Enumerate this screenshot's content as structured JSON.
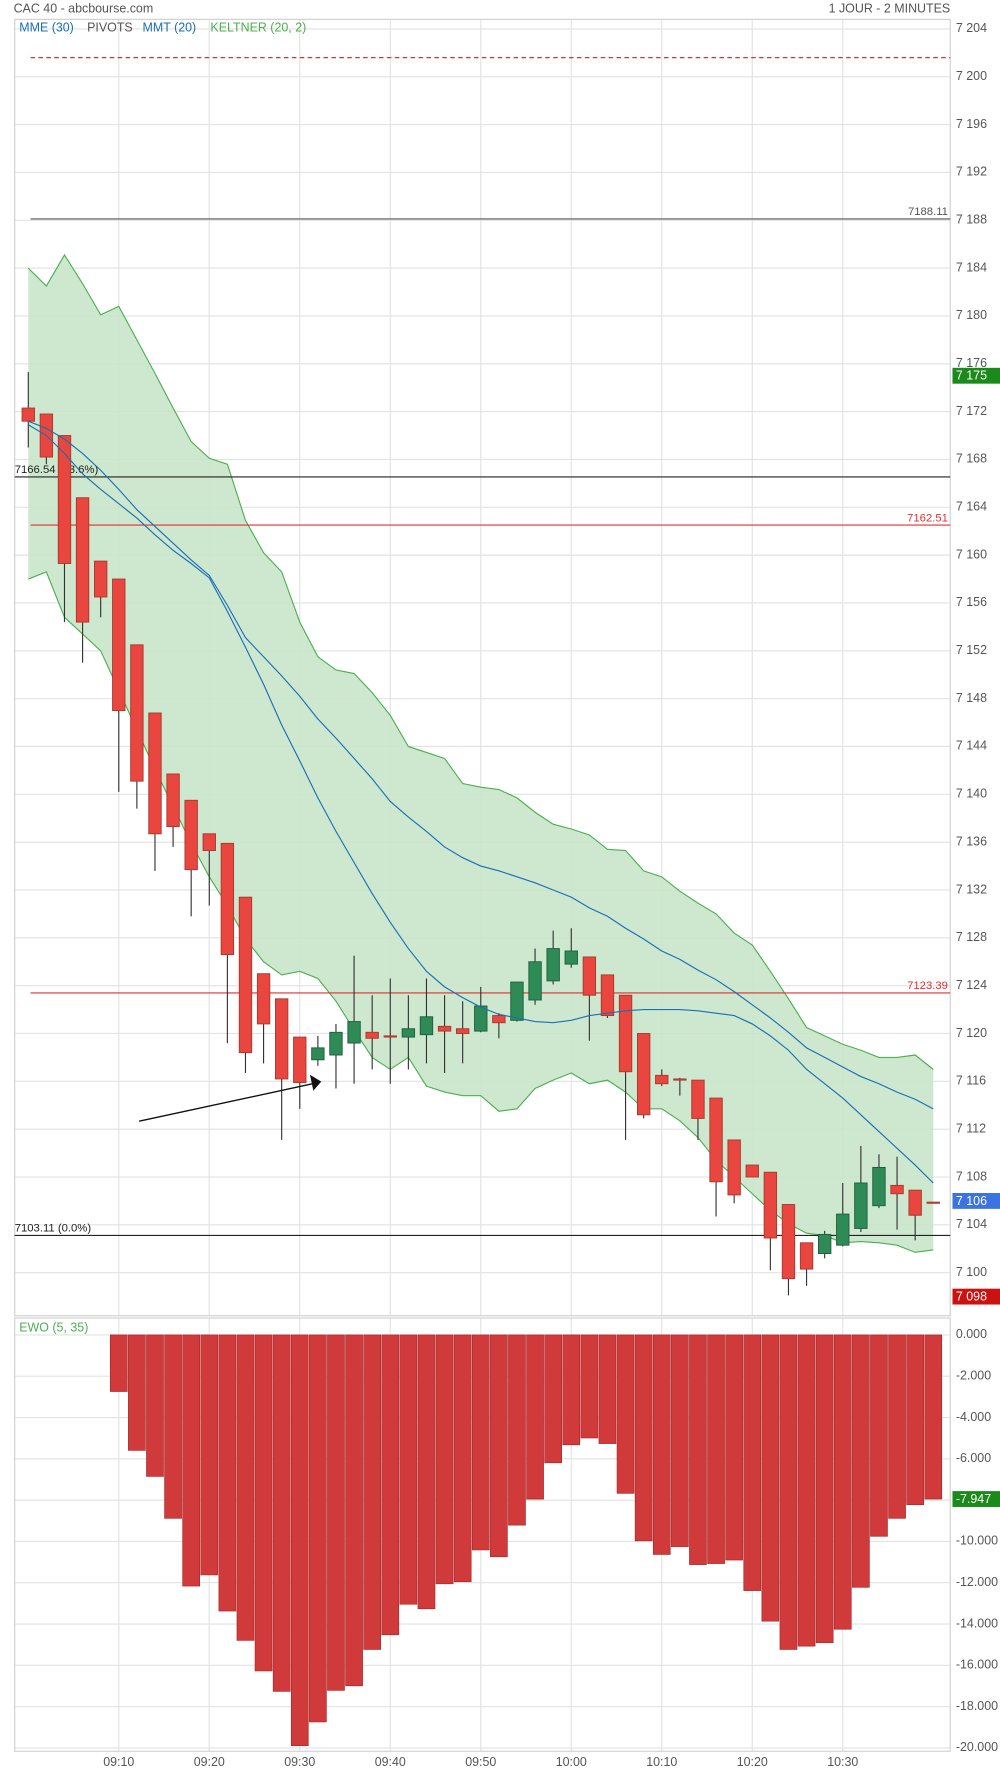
{
  "chart_data": [
    {
      "type": "candlestick",
      "title": "CAC 40 - abcbourse.com",
      "subtitle": "1 JOUR - 2 MINUTES",
      "categories": [
        null,
        null,
        null,
        null,
        null,
        "09:10",
        null,
        null,
        null,
        null,
        "09:20",
        null,
        null,
        null,
        null,
        "09:30",
        null,
        null,
        null,
        null,
        "09:40",
        null,
        null,
        null,
        null,
        "09:50",
        null,
        null,
        null,
        null,
        "10:00",
        null,
        null,
        null,
        null,
        "10:10",
        null,
        null,
        null,
        null,
        "10:20",
        null,
        null,
        null,
        null,
        "10:30",
        null,
        null,
        null,
        null,
        null
      ],
      "open": [
        7172.3,
        7171.8,
        7170.0,
        7164.8,
        7159.5,
        7158.0,
        7152.5,
        7146.8,
        7141.7,
        7139.5,
        7136.7,
        7135.9,
        7131.4,
        7125.0,
        7122.9,
        7119.7,
        7117.8,
        7118.2,
        7119.2,
        7120.1,
        7119.8,
        7119.7,
        7119.9,
        7120.6,
        7120.4,
        7120.2,
        7121.5,
        7121.1,
        7122.8,
        7124.4,
        7125.8,
        7126.4,
        7124.9,
        7123.2,
        7120.0,
        7116.5,
        7116.2,
        7116.1,
        7114.6,
        7111.1,
        7109.0,
        7108.4,
        7105.7,
        7102.5,
        7101.6,
        7102.3,
        7103.7,
        7105.6,
        7107.3,
        7106.9,
        7105.9
      ],
      "high": [
        7175.3,
        7171.8,
        7170.0,
        7164.8,
        7159.5,
        7158.0,
        7152.5,
        7146.8,
        7141.7,
        7139.5,
        7136.7,
        7135.9,
        7131.4,
        7125.0,
        7122.9,
        7119.7,
        7119.8,
        7120.8,
        7126.5,
        7123.2,
        7124.6,
        7123.2,
        7124.6,
        7123.2,
        7122.7,
        7123.9,
        7121.7,
        7124.3,
        7127.1,
        7128.6,
        7128.8,
        7126.4,
        7124.9,
        7123.2,
        7120.0,
        7117.0,
        7116.3,
        7116.1,
        7114.6,
        7111.1,
        7109.0,
        7108.4,
        7105.7,
        7102.5,
        7103.5,
        7107.5,
        7110.6,
        7109.9,
        7109.7,
        7106.9,
        7105.9
      ],
      "low": [
        7169.0,
        7167.6,
        7154.4,
        7151.0,
        7154.8,
        7140.2,
        7138.8,
        7133.6,
        7135.6,
        7129.8,
        7130.7,
        7119.2,
        7116.7,
        7117.5,
        7111.1,
        7113.7,
        7117.3,
        7115.4,
        7115.8,
        7117.0,
        7115.8,
        7117.0,
        7117.5,
        7116.7,
        7117.5,
        7120.1,
        7119.6,
        7121.0,
        7122.4,
        7124.1,
        7125.5,
        7119.4,
        7121.3,
        7111.1,
        7112.9,
        7115.6,
        7114.8,
        7111.1,
        7104.7,
        7105.8,
        7108.0,
        7100.2,
        7098.1,
        7098.9,
        7101.2,
        7102.2,
        7103.4,
        7105.4,
        7103.6,
        7102.7,
        7105.8
      ],
      "close": [
        7171.2,
        7168.2,
        7159.3,
        7154.4,
        7156.5,
        7147.0,
        7141.1,
        7136.7,
        7137.3,
        7133.7,
        7135.3,
        7126.6,
        7118.4,
        7120.8,
        7116.2,
        7115.9,
        7118.8,
        7120.1,
        7121.0,
        7119.6,
        7119.7,
        7120.4,
        7121.4,
        7120.2,
        7120.0,
        7122.3,
        7120.9,
        7124.3,
        7126.0,
        7127.1,
        7126.9,
        7123.2,
        7121.5,
        7116.8,
        7113.2,
        7115.8,
        7116.1,
        7112.9,
        7107.6,
        7106.5,
        7108.0,
        7102.9,
        7099.5,
        7100.3,
        7103.2,
        7104.9,
        7107.5,
        7108.8,
        7106.6,
        7104.8,
        7105.8
      ],
      "up_color": "#2e8b57",
      "down_color": "#e8463f",
      "series": [
        {
          "name": "MME (30)",
          "color": "#1a6fb5",
          "values": [
            7171.2,
            7170.6,
            7169.7,
            7168.5,
            7167.1,
            7165.5,
            7163.8,
            7162.4,
            7161.0,
            7159.6,
            7158.3,
            7155.8,
            7153.1,
            7151.5,
            7149.9,
            7148.2,
            7146.3,
            7144.7,
            7143.0,
            7141.3,
            7139.4,
            7138.1,
            7136.9,
            7135.6,
            7134.7,
            7134.0,
            7133.6,
            7133.1,
            7132.6,
            7132.0,
            7131.4,
            7130.5,
            7129.8,
            7128.8,
            7127.9,
            7126.9,
            7126.2,
            7125.3,
            7124.5,
            7123.5,
            7122.4,
            7121.3,
            7120.1,
            7118.8,
            7118.0,
            7117.2,
            7116.4,
            7115.8,
            7115.1,
            7114.5,
            7113.7
          ]
        },
        {
          "name": "MMT (20)",
          "color": "#1a6fb5",
          "values": [
            7170.9,
            7170.0,
            7168.5,
            7166.8,
            7165.5,
            7164.3,
            7163.1,
            7161.7,
            7160.4,
            7159.3,
            7158.1,
            7155.3,
            7152.3,
            7149.2,
            7145.8,
            7142.8,
            7139.7,
            7136.9,
            7134.3,
            7131.7,
            7129.3,
            7127.1,
            7125.2,
            7123.9,
            7123.0,
            7122.2,
            7121.6,
            7121.3,
            7121.0,
            7120.9,
            7121.1,
            7121.5,
            7121.7,
            7121.9,
            7122.0,
            7122.0,
            7122.0,
            7121.9,
            7121.7,
            7121.5,
            7120.8,
            7119.8,
            7118.6,
            7117.0,
            7115.8,
            7114.6,
            7113.2,
            7111.8,
            7110.4,
            7109.0,
            7107.5
          ]
        },
        {
          "name": "KELTNER (20, 2)",
          "color": "#4caf50",
          "fill": "#c8e6c9",
          "upper": [
            7184.0,
            7182.5,
            7185.1,
            7182.7,
            7180.1,
            7180.8,
            7178.0,
            7175.2,
            7172.3,
            7169.5,
            7168.1,
            7167.6,
            7162.9,
            7160.2,
            7158.6,
            7154.4,
            7151.5,
            7150.4,
            7150.1,
            7148.5,
            7146.6,
            7144.0,
            7143.5,
            7143.0,
            7140.9,
            7140.6,
            7140.4,
            7139.7,
            7138.5,
            7137.5,
            7137.1,
            7136.6,
            7135.4,
            7135.3,
            7133.6,
            7133.1,
            7131.9,
            7130.9,
            7130.0,
            7128.4,
            7127.4,
            7125.2,
            7122.9,
            7120.5,
            7119.8,
            7119.1,
            7118.6,
            7118.0,
            7118.0,
            7118.2,
            7117.0
          ],
          "lower": [
            7158.0,
            7158.6,
            7154.8,
            7153.4,
            7152.0,
            7148.7,
            7145.4,
            7142.1,
            7139.0,
            7135.9,
            7133.1,
            7130.7,
            7127.9,
            7126.0,
            7124.9,
            7125.2,
            7124.6,
            7122.7,
            7120.3,
            7118.0,
            7117.0,
            7118.0,
            7115.6,
            7115.1,
            7114.8,
            7114.8,
            7113.5,
            7113.7,
            7115.4,
            7116.1,
            7116.7,
            7115.8,
            7116.1,
            7115.1,
            7113.7,
            7113.7,
            7112.7,
            7111.3,
            7109.4,
            7108.0,
            7106.6,
            7105.2,
            7104.1,
            7103.3,
            7103.1,
            7102.5,
            7102.6,
            7102.5,
            7102.3,
            7101.7,
            7101.9
          ]
        }
      ],
      "pivots": {
        "name": "PIVOTS",
        "color": "#555555",
        "levels": [
          {
            "value": 7201.6,
            "color": "#e03030",
            "dashed": true
          },
          {
            "value": 7188.11,
            "label": "7188.11",
            "color": "#555555",
            "label_side": "right"
          },
          {
            "value": 7166.54,
            "label": "7166.54  (23.6%)",
            "color": "#222222",
            "label_side": "left"
          },
          {
            "value": 7162.51,
            "label": "7162.51",
            "color": "#e03030",
            "label_side": "right"
          },
          {
            "value": 7123.39,
            "label": "7123.39",
            "color": "#e03030",
            "label_side": "right"
          },
          {
            "value": 7103.11,
            "label": "7103.11  (0.0%)",
            "color": "#222222",
            "label_side": "left"
          }
        ]
      },
      "markers": [
        {
          "value": 7175,
          "label": "7 175",
          "color": "#1a8a1a"
        },
        {
          "value": 7106,
          "label": "7 106",
          "color": "#3b73e0"
        },
        {
          "value": 7098,
          "label": "7 098",
          "color": "#cc1111"
        }
      ],
      "ylim": [
        7096.4,
        7204.8
      ],
      "yticks": [
        {
          "value": 7100,
          "label": "7 100"
        },
        {
          "value": 7104,
          "label": "7 104"
        },
        {
          "value": 7108,
          "label": "7 108"
        },
        {
          "value": 7112,
          "label": "7 112"
        },
        {
          "value": 7116,
          "label": "7 116"
        },
        {
          "value": 7120,
          "label": "7 120"
        },
        {
          "value": 7124,
          "label": "7 124"
        },
        {
          "value": 7128,
          "label": "7 128"
        },
        {
          "value": 7132,
          "label": "7 132"
        },
        {
          "value": 7136,
          "label": "7 136"
        },
        {
          "value": 7140,
          "label": "7 140"
        },
        {
          "value": 7144,
          "label": "7 144"
        },
        {
          "value": 7148,
          "label": "7 148"
        },
        {
          "value": 7152,
          "label": "7 152"
        },
        {
          "value": 7156,
          "label": "7 156"
        },
        {
          "value": 7160,
          "label": "7 160"
        },
        {
          "value": 7164,
          "label": "7 164"
        },
        {
          "value": 7168,
          "label": "7 168"
        },
        {
          "value": 7172,
          "label": "7 172"
        },
        {
          "value": 7176,
          "label": "7 176"
        },
        {
          "value": 7180,
          "label": "7 180"
        },
        {
          "value": 7184,
          "label": "7 184"
        },
        {
          "value": 7188,
          "label": "7 188"
        },
        {
          "value": 7192,
          "label": "7 192"
        },
        {
          "value": 7196,
          "label": "7 196"
        },
        {
          "value": 7200,
          "label": "7 200"
        },
        {
          "value": 7204,
          "label": "7 204"
        }
      ],
      "grid": true
    },
    {
      "type": "bar",
      "title": "EWO (5, 35)",
      "title_color": "#4caf50",
      "categories": [
        null,
        null,
        null,
        null,
        null,
        "09:10",
        null,
        null,
        null,
        null,
        "09:20",
        null,
        null,
        null,
        null,
        "09:30",
        null,
        null,
        null,
        null,
        "09:40",
        null,
        null,
        null,
        null,
        "09:50",
        null,
        null,
        null,
        null,
        "10:00",
        null,
        null,
        null,
        null,
        "10:10",
        null,
        null,
        null,
        null,
        "10:20",
        null,
        null,
        null,
        null,
        "10:30",
        null,
        null,
        null,
        null,
        null
      ],
      "values": [
        null,
        null,
        null,
        null,
        null,
        -2.74,
        -5.59,
        -6.85,
        -8.88,
        -12.16,
        -11.62,
        -13.37,
        -14.79,
        -16.27,
        -17.26,
        -19.89,
        -18.74,
        -17.21,
        -16.99,
        -15.23,
        -14.52,
        -13.04,
        -13.26,
        -12.05,
        -11.95,
        -10.41,
        -10.74,
        -9.21,
        -7.95,
        -6.19,
        -5.32,
        -4.99,
        -5.26,
        -7.67,
        -9.97,
        -10.63,
        -10.25,
        -11.12,
        -11.07,
        -10.9,
        -12.38,
        -13.86,
        -15.23,
        -15.07,
        -14.9,
        -14.25,
        -12.22,
        -9.75,
        -8.88,
        -8.22,
        -7.947
      ],
      "color": "#d13a3a",
      "markers": [
        {
          "value": -7.947,
          "label": "-7.947",
          "color": "#1a8a1a"
        }
      ],
      "ylim": [
        -20.16,
        0.82
      ],
      "yticks": [
        {
          "value": 0,
          "label": "0.000"
        },
        {
          "value": -2,
          "label": "-2.000"
        },
        {
          "value": -4,
          "label": "-4.000"
        },
        {
          "value": -6,
          "label": "-6.000"
        },
        {
          "value": -8,
          "label": "-8.000"
        },
        {
          "value": -10,
          "label": "-10.000"
        },
        {
          "value": -12,
          "label": "-12.000"
        },
        {
          "value": -14,
          "label": "-14.000"
        },
        {
          "value": -16,
          "label": "-16.000"
        },
        {
          "value": -18,
          "label": "-18.000"
        },
        {
          "value": -20,
          "label": "-20.000"
        }
      ],
      "grid": true
    }
  ]
}
